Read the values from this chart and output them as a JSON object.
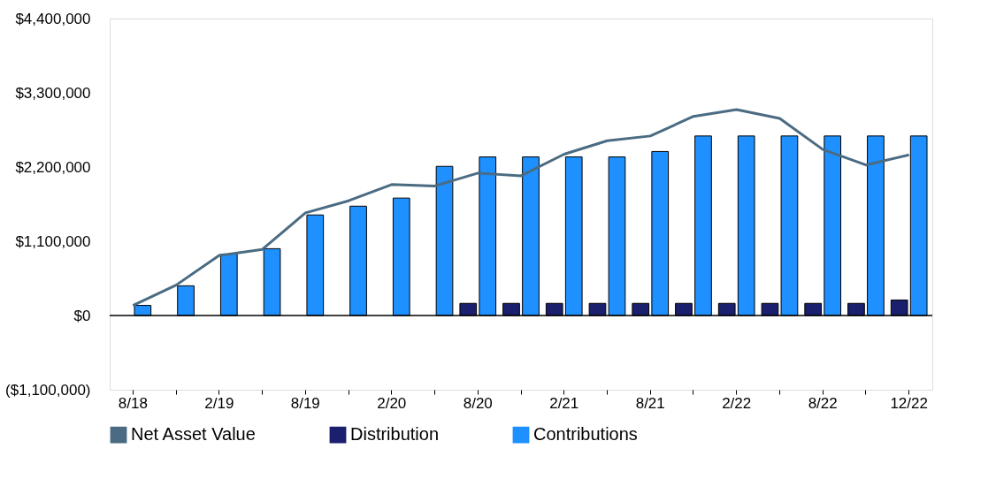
{
  "chart_data": {
    "type": "bar",
    "categories": [
      "8/18",
      null,
      "2/19",
      null,
      "8/19",
      null,
      "2/20",
      null,
      "8/20",
      null,
      "2/21",
      null,
      "8/21",
      null,
      "2/22",
      null,
      "8/22",
      null,
      "12/22"
    ],
    "series": [
      {
        "name": "Net Asset Value",
        "type": "line",
        "color": "#4a6b82",
        "values": [
          150000,
          450000,
          890000,
          980000,
          1520000,
          1700000,
          1940000,
          1920000,
          2110000,
          2070000,
          2390000,
          2590000,
          2660000,
          2950000,
          3050000,
          2920000,
          2460000,
          2230000,
          2380000
        ]
      },
      {
        "name": "Distribution",
        "color": "#1a1f6e",
        "values": [
          null,
          null,
          null,
          null,
          null,
          null,
          null,
          null,
          180000,
          180000,
          180000,
          180000,
          180000,
          180000,
          180000,
          180000,
          180000,
          180000,
          230000
        ]
      },
      {
        "name": "Contributions",
        "color": "#1e90ff",
        "values": [
          150000,
          440000,
          910000,
          990000,
          1490000,
          1620000,
          1740000,
          2210000,
          2350000,
          2350000,
          2350000,
          2350000,
          2430000,
          2660000,
          2660000,
          2660000,
          2660000,
          2660000,
          2660000
        ]
      }
    ],
    "ylim": [
      -1100000,
      4400000
    ],
    "yticks": [
      {
        "value": -1100000,
        "label": "($1,100,000)"
      },
      {
        "value": 0,
        "label": "$0"
      },
      {
        "value": 1100000,
        "label": "$1,100,000"
      },
      {
        "value": 2200000,
        "label": "$2,200,000"
      },
      {
        "value": 3300000,
        "label": "$3,300,000"
      },
      {
        "value": 4400000,
        "label": "$4,400,000"
      }
    ],
    "ref_lines": [
      {
        "axis": "y",
        "value": 0,
        "label": null
      }
    ],
    "grid": false,
    "legend": "bottom"
  }
}
